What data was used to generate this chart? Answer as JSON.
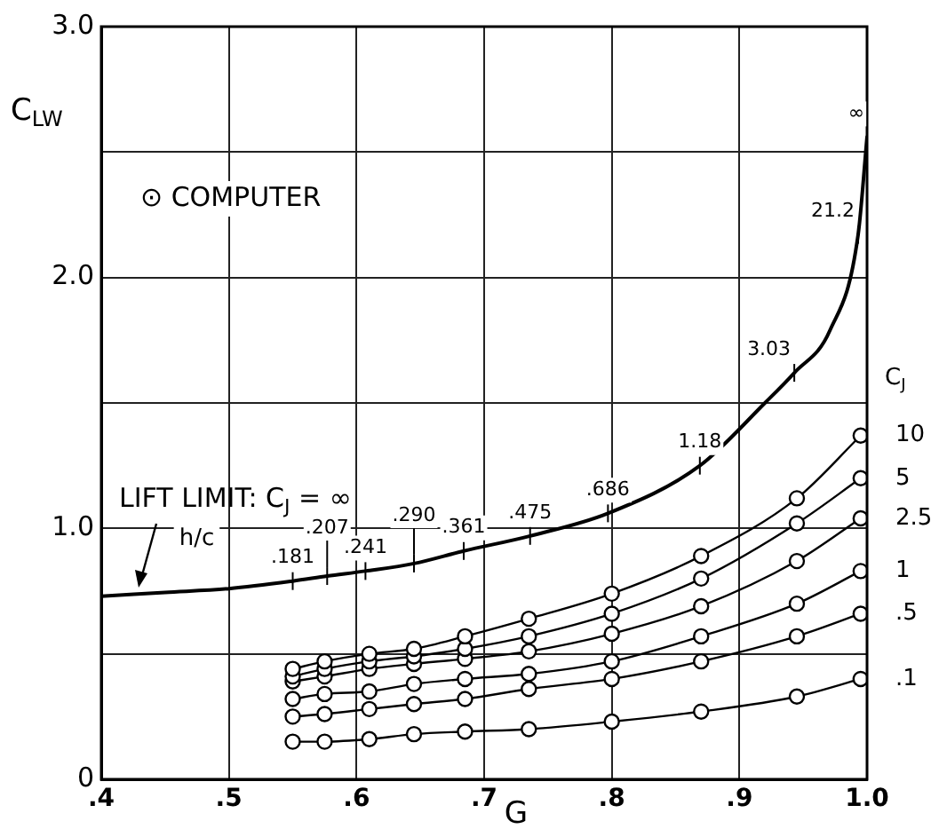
{
  "chart_data": {
    "type": "line",
    "xlabel": "G",
    "ylabel": "C$_{LW}$",
    "legend_title": "C$_{J}$",
    "xlim": [
      0.4,
      1.0
    ],
    "xticks": [
      {
        "value": 0.4,
        "label": ".4"
      },
      {
        "value": 0.5,
        "label": ".5"
      },
      {
        "value": 0.6,
        "label": ".6"
      },
      {
        "value": 0.7,
        "label": ".7"
      },
      {
        "value": 0.8,
        "label": ".8"
      },
      {
        "value": 0.9,
        "label": ".9"
      },
      {
        "value": 1.0,
        "label": "1.0"
      }
    ],
    "ylim": [
      0,
      3.0
    ],
    "yticks": [
      0,
      {
        "value": 0.5,
        "label": null
      },
      {
        "value": 1.0,
        "label": "1.0"
      },
      {
        "value": 1.5,
        "label": null
      },
      {
        "value": 2.0,
        "label": "2.0"
      },
      {
        "value": 2.5,
        "label": null
      },
      {
        "value": 3.0,
        "label": "3.0"
      }
    ],
    "grid": true,
    "legend": false,
    "line_style": "solid",
    "series": [
      {
        "name": "LIFT LIMIT: C$_{J}$ = ∞",
        "color": "#000000",
        "marker": "none",
        "x": [
          0.4,
          0.45,
          0.5,
          0.55,
          0.577,
          0.607,
          0.645,
          0.684,
          0.736,
          0.797,
          0.869,
          0.92,
          0.943,
          0.971,
          0.993,
          1.0
        ],
        "values": [
          0.73,
          0.745,
          0.76,
          0.79,
          0.81,
          0.83,
          0.86,
          0.91,
          0.97,
          1.06,
          1.25,
          1.5,
          1.62,
          1.79,
          2.17,
          2.56
        ]
      },
      {
        "name": "10",
        "color": "#000000",
        "marker": "circle",
        "x": [
          0.55,
          0.575,
          0.61,
          0.645,
          0.685,
          0.735,
          0.8,
          0.87,
          0.945,
          0.995
        ],
        "values": [
          0.44,
          0.47,
          0.5,
          0.52,
          0.57,
          0.64,
          0.74,
          0.89,
          1.12,
          1.37
        ]
      },
      {
        "name": "5",
        "color": "#000000",
        "marker": "circle",
        "x": [
          0.55,
          0.575,
          0.61,
          0.645,
          0.685,
          0.735,
          0.8,
          0.87,
          0.945,
          0.995
        ],
        "values": [
          0.41,
          0.44,
          0.47,
          0.49,
          0.52,
          0.57,
          0.66,
          0.8,
          1.02,
          1.2
        ]
      },
      {
        "name": "2.5",
        "color": "#000000",
        "marker": "circle",
        "x": [
          0.55,
          0.575,
          0.61,
          0.645,
          0.685,
          0.735,
          0.8,
          0.87,
          0.945,
          0.995
        ],
        "values": [
          0.39,
          0.41,
          0.44,
          0.46,
          0.48,
          0.51,
          0.58,
          0.69,
          0.87,
          1.04
        ]
      },
      {
        "name": "1",
        "color": "#000000",
        "marker": "circle",
        "x": [
          0.55,
          0.575,
          0.61,
          0.645,
          0.685,
          0.735,
          0.8,
          0.87,
          0.945,
          0.995
        ],
        "values": [
          0.32,
          0.34,
          0.35,
          0.38,
          0.4,
          0.42,
          0.47,
          0.57,
          0.7,
          0.83
        ]
      },
      {
        "name": ".5",
        "color": "#000000",
        "marker": "circle",
        "x": [
          0.55,
          0.575,
          0.61,
          0.645,
          0.685,
          0.735,
          0.8,
          0.87,
          0.945,
          0.995
        ],
        "values": [
          0.25,
          0.26,
          0.28,
          0.3,
          0.32,
          0.36,
          0.4,
          0.47,
          0.57,
          0.66
        ]
      },
      {
        "name": ".1",
        "color": "#000000",
        "marker": "circle",
        "x": [
          0.55,
          0.575,
          0.61,
          0.645,
          0.685,
          0.735,
          0.8,
          0.87,
          0.945,
          0.995
        ],
        "values": [
          0.15,
          0.15,
          0.16,
          0.18,
          0.19,
          0.2,
          0.23,
          0.27,
          0.33,
          0.4
        ]
      }
    ],
    "annotations": [
      "⊙ COMPUTER",
      "h/c",
      {
        "text": ".181",
        "x": 0.55,
        "y": 0.79
      },
      {
        "text": ".207",
        "x": 0.577,
        "y": 0.81
      },
      {
        "text": ".241",
        "x": 0.607,
        "y": 0.83
      },
      {
        "text": ".290",
        "x": 0.645,
        "y": 0.86
      },
      {
        "text": ".361",
        "x": 0.684,
        "y": 0.91
      },
      {
        "text": ".475",
        "x": 0.736,
        "y": 0.97
      },
      {
        "text": ".686",
        "x": 0.797,
        "y": 1.06
      },
      {
        "text": "1.18",
        "x": 0.869,
        "y": 1.25
      },
      {
        "text": "3.03",
        "x": 0.943,
        "y": 1.62
      },
      {
        "text": "21.2",
        "x": 0.993,
        "y": 2.17
      },
      {
        "text": "∞",
        "x": 1.0,
        "y": 2.56
      }
    ]
  }
}
